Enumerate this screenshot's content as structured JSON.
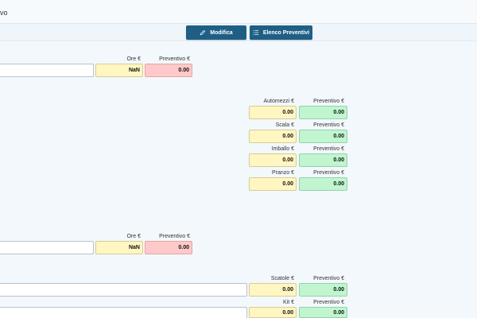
{
  "header": {
    "title": "vo"
  },
  "toolbar": {
    "modifica_label": "Modifica",
    "elenco_label": "Elenco Preventivi",
    "accent": "#1f5f86"
  },
  "section1": {
    "ore_label": "Ore €",
    "ore_value": "NaN",
    "preventivo_label": "Preventivo €",
    "preventivo_value": "0.00"
  },
  "extras": {
    "automezzi": {
      "label": "Automezzi €",
      "value": "0.00",
      "prev_label": "Preventivo €",
      "prev_value": "0.00"
    },
    "scala": {
      "label": "Scala €",
      "value": "0.00",
      "prev_label": "Preventivo €",
      "prev_value": "0.00"
    },
    "imballo": {
      "label": "Imballo €",
      "value": "0.00",
      "prev_label": "Preventivo €",
      "prev_value": "0.00"
    },
    "pranzo": {
      "label": "Pranzo €",
      "value": "0.00",
      "prev_label": "Preventivo €",
      "prev_value": "0.00"
    }
  },
  "section2": {
    "ore_label": "Ore €",
    "ore_value": "NaN",
    "preventivo_label": "Preventivo €",
    "preventivo_value": "0.00"
  },
  "materials": {
    "scatole": {
      "label": "Scatole €",
      "value": "0.00",
      "prev_label": "Preventivo €",
      "prev_value": "0.00"
    },
    "kit": {
      "label": "Kit €",
      "value": "0.00",
      "prev_label": "Preventivo €",
      "prev_value": "0.00"
    }
  },
  "colors": {
    "yellow": "#fff6c2",
    "pink": "#ffc9c9",
    "green": "#c0f5cf"
  }
}
